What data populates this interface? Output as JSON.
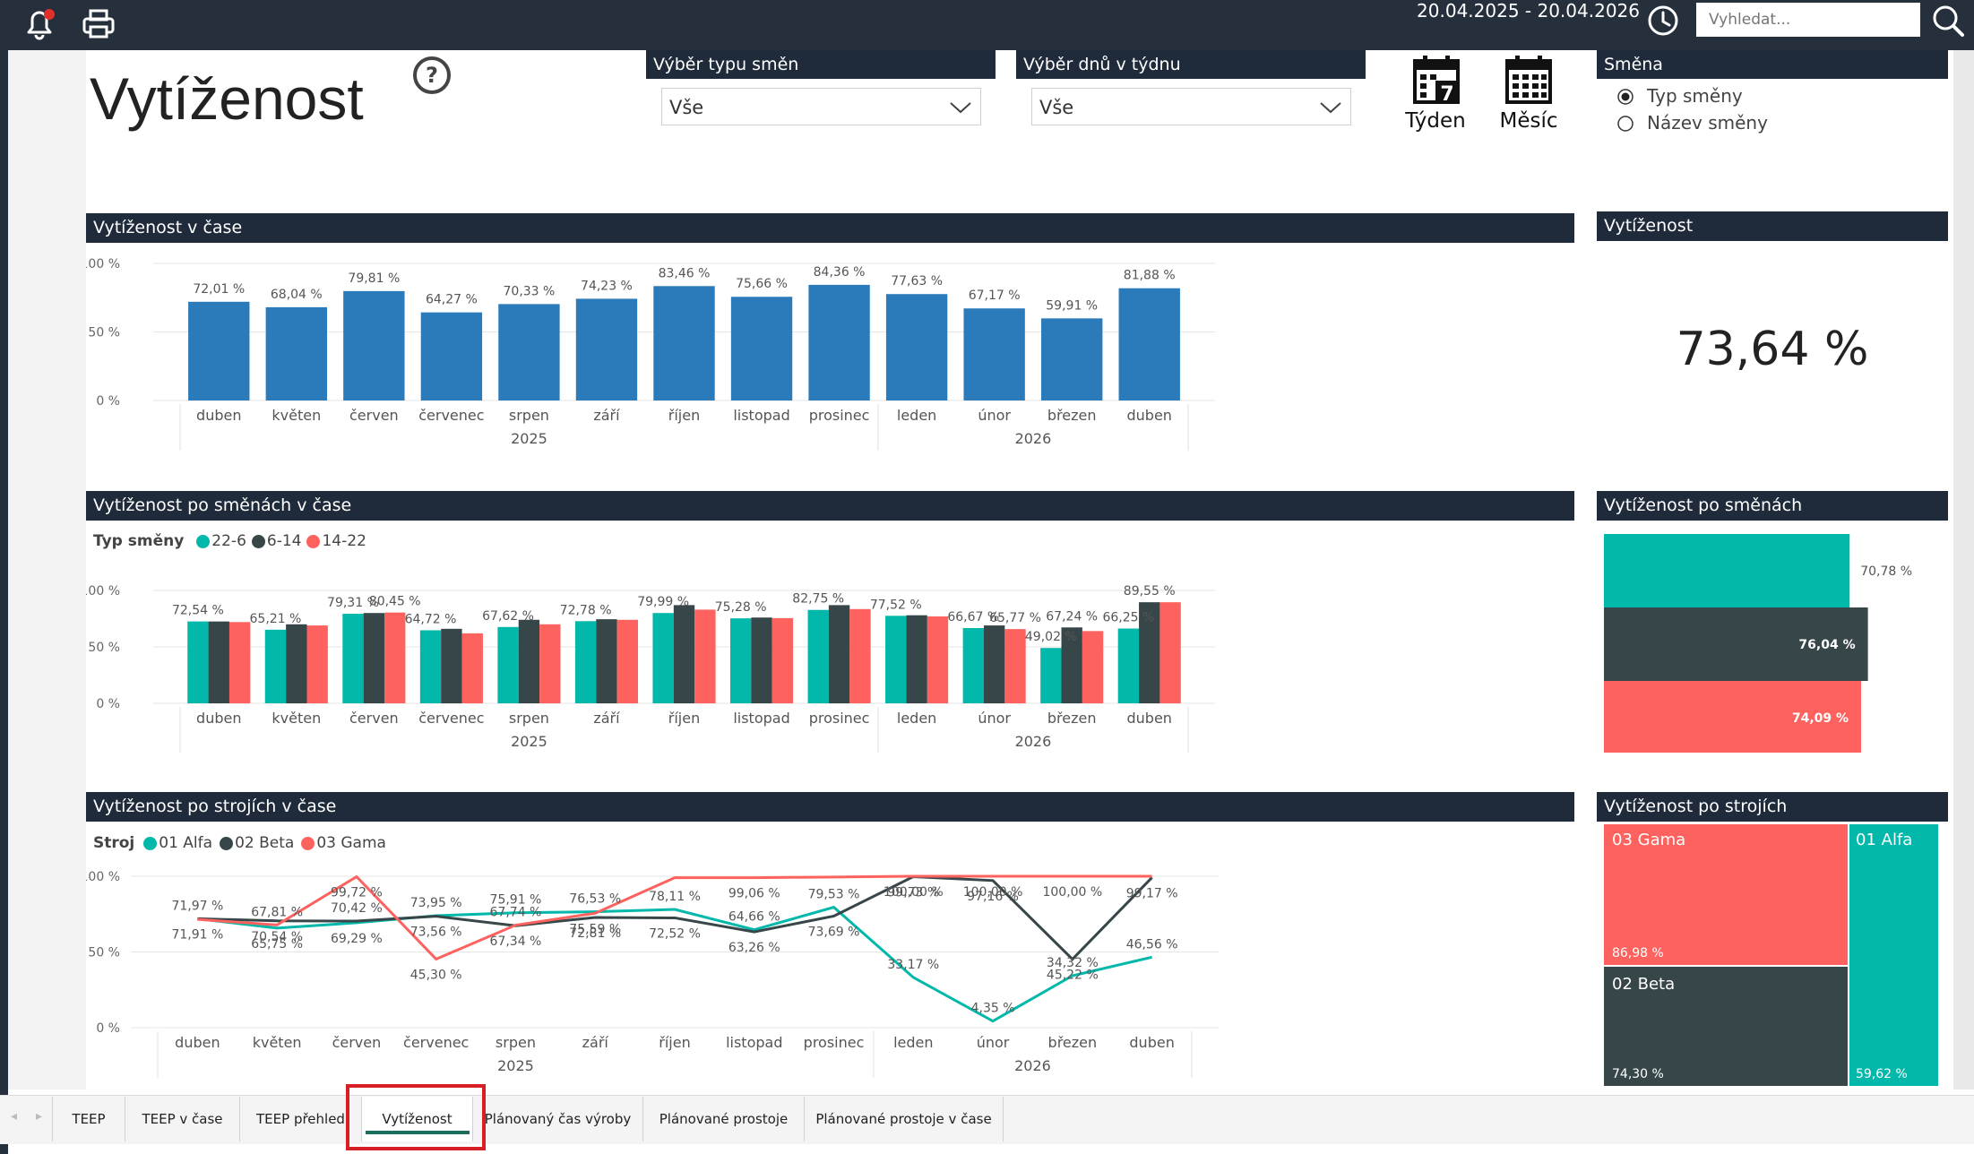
{
  "topbar": {
    "date_range": "20.04.2025 - 20.04.2026",
    "search_placeholder": "Vyhledat...",
    "icons": [
      "bell-icon",
      "print-icon",
      "clock-icon",
      "search-icon"
    ]
  },
  "page": {
    "title": "Vytíženost",
    "help_icon": "?"
  },
  "slicers": {
    "shift_type": {
      "label": "Výběr typu směn",
      "value": "Vše"
    },
    "weekday": {
      "label": "Výběr dnů v týdnu",
      "value": "Vše"
    }
  },
  "period_buttons": {
    "week": {
      "label": "Týden",
      "icon_digit": "7"
    },
    "month": {
      "label": "Měsíc"
    }
  },
  "shift_filter": {
    "title": "Směna",
    "options": [
      {
        "label": "Typ směny",
        "selected": true
      },
      {
        "label": "Název směny",
        "selected": false
      }
    ]
  },
  "colors": {
    "header": "#1f2b3a",
    "bar_blue": "#2b7bbb",
    "teal": "#01b8aa",
    "dark": "#374649",
    "red": "#fd625e",
    "tab_active_underline": "#1b6e5b",
    "highlight_red": "#d81f26"
  },
  "chart_time": {
    "title": "Vytíženost v čase",
    "chart_data": {
      "type": "bar",
      "categories": [
        "duben",
        "květen",
        "červen",
        "červenec",
        "srpen",
        "září",
        "říjen",
        "listopad",
        "prosinec",
        "leden",
        "únor",
        "březen",
        "duben"
      ],
      "year_groups": [
        {
          "label": "2025",
          "count": 9
        },
        {
          "label": "2026",
          "count": 4
        }
      ],
      "values": [
        72.01,
        68.04,
        79.81,
        64.27,
        70.33,
        74.23,
        83.46,
        75.66,
        84.36,
        77.63,
        67.17,
        59.91,
        81.88
      ],
      "labels": [
        "72,01 %",
        "68,04 %",
        "79,81 %",
        "64,27 %",
        "70,33 %",
        "74,23 %",
        "83,46 %",
        "75,66 %",
        "84,36 %",
        "77,63 %",
        "67,17 %",
        "59,91 %",
        "81,88 %"
      ],
      "ylim": [
        0,
        100
      ],
      "yticks": [
        "100 %",
        "50 %",
        "0 %"
      ],
      "grid": true
    }
  },
  "card_total": {
    "title": "Vytíženost",
    "value": "73,64 %"
  },
  "chart_shift_time": {
    "title": "Vytíženost po směnách v čase",
    "legend_title": "Typ směny",
    "chart_data": {
      "type": "bar",
      "categories": [
        "duben",
        "květen",
        "červen",
        "červenec",
        "srpen",
        "září",
        "říjen",
        "listopad",
        "prosinec",
        "leden",
        "únor",
        "březen",
        "duben"
      ],
      "year_groups": [
        {
          "label": "2025",
          "count": 9
        },
        {
          "label": "2026",
          "count": 4
        }
      ],
      "ylim": [
        0,
        100
      ],
      "yticks": [
        "100 %",
        "50 %",
        "0 %"
      ],
      "series": [
        {
          "name": "22-6",
          "color": "#01b8aa",
          "values": [
            72.54,
            65.21,
            79.31,
            64.72,
            67.62,
            72.78,
            79.99,
            75.28,
            82.75,
            77.52,
            66.67,
            49.02,
            66.25
          ]
        },
        {
          "name": "6-14",
          "color": "#374649",
          "values": [
            72.5,
            70.0,
            80.0,
            66.0,
            74.0,
            74.5,
            87.0,
            76.0,
            87.0,
            78.0,
            69.0,
            67.24,
            89.55
          ]
        },
        {
          "name": "14-22",
          "color": "#fd625e",
          "values": [
            72.0,
            69.0,
            80.45,
            62.0,
            70.0,
            74.0,
            83.0,
            75.5,
            83.5,
            77.0,
            65.77,
            64.0,
            89.55
          ]
        }
      ],
      "data_labels": [
        {
          "cat": 0,
          "series": 0,
          "text": "72,54 %"
        },
        {
          "cat": 1,
          "series": 0,
          "text": "65,21 %"
        },
        {
          "cat": 2,
          "series": 0,
          "text": "79,31 %"
        },
        {
          "cat": 2,
          "series": 2,
          "text": "80,45 %"
        },
        {
          "cat": 3,
          "series": 0,
          "text": "64,72 %"
        },
        {
          "cat": 4,
          "series": 0,
          "text": "67,62 %"
        },
        {
          "cat": 5,
          "series": 0,
          "text": "72,78 %"
        },
        {
          "cat": 6,
          "series": 0,
          "text": "79,99 %"
        },
        {
          "cat": 7,
          "series": 0,
          "text": "75,28 %"
        },
        {
          "cat": 8,
          "series": 0,
          "text": "82,75 %"
        },
        {
          "cat": 9,
          "series": 0,
          "text": "77,52 %"
        },
        {
          "cat": 10,
          "series": 0,
          "text": "66,67 %"
        },
        {
          "cat": 10,
          "series": 2,
          "text": "65,77 %"
        },
        {
          "cat": 11,
          "series": 0,
          "text": "49,02 %"
        },
        {
          "cat": 11,
          "series": 1,
          "text": "67,24 %"
        },
        {
          "cat": 12,
          "series": 0,
          "text": "66,25 %"
        },
        {
          "cat": 12,
          "series": 1,
          "text": "89,55 %"
        }
      ]
    }
  },
  "card_shift": {
    "title": "Vytíženost po směnách",
    "chart_data": {
      "type": "bar",
      "orientation": "horizontal",
      "categories": [
        "22-6",
        "6-14",
        "14-22"
      ],
      "values": [
        70.78,
        76.04,
        74.09
      ],
      "labels": [
        "70,78 %",
        "76,04 %",
        "74,09 %"
      ],
      "colors": [
        "#01b8aa",
        "#374649",
        "#fd625e"
      ]
    }
  },
  "chart_machine_time": {
    "title": "Vytíženost po strojích v čase",
    "legend_title": "Stroj",
    "chart_data": {
      "type": "line",
      "categories": [
        "duben",
        "květen",
        "červen",
        "červenec",
        "srpen",
        "září",
        "říjen",
        "listopad",
        "prosinec",
        "leden",
        "únor",
        "březen",
        "duben"
      ],
      "year_groups": [
        {
          "label": "2025",
          "count": 9
        },
        {
          "label": "2026",
          "count": 4
        }
      ],
      "ylim": [
        0,
        100
      ],
      "yticks": [
        "100 %",
        "50 %",
        "0 %"
      ],
      "series": [
        {
          "name": "01 Alfa",
          "color": "#01b8aa",
          "values": [
            71.91,
            65.75,
            69.29,
            73.95,
            75.91,
            76.53,
            78.11,
            64.66,
            79.53,
            33.17,
            4.35,
            34.32,
            46.56
          ]
        },
        {
          "name": "02 Beta",
          "color": "#374649",
          "values": [
            71.97,
            70.54,
            70.42,
            73.56,
            67.34,
            72.81,
            72.52,
            63.26,
            73.69,
            99.73,
            97.16,
            45.22,
            99.17
          ]
        },
        {
          "name": "03 Gama",
          "color": "#fd625e",
          "values": [
            71.5,
            67.81,
            99.72,
            45.3,
            67.74,
            75.59,
            99.06,
            99.06,
            99.5,
            100.0,
            100.0,
            100.0,
            100.0
          ]
        }
      ],
      "data_labels": [
        {
          "cat": 0,
          "y": 71.97,
          "above": true,
          "text": "71,97 %"
        },
        {
          "cat": 0,
          "y": 71.91,
          "above": false,
          "text": "71,91 %"
        },
        {
          "cat": 1,
          "y": 67.81,
          "above": true,
          "text": "67,81 %"
        },
        {
          "cat": 1,
          "y": 70.54,
          "above": false,
          "text": "70,54 %"
        },
        {
          "cat": 1,
          "y": 65.75,
          "above": false,
          "text": "65,75 %"
        },
        {
          "cat": 2,
          "y": 99.72,
          "above": false,
          "text": "99,72 %"
        },
        {
          "cat": 2,
          "y": 70.42,
          "above": true,
          "text": "70,42 %"
        },
        {
          "cat": 2,
          "y": 69.29,
          "above": false,
          "text": "69,29 %"
        },
        {
          "cat": 3,
          "y": 73.95,
          "above": true,
          "text": "73,95 %"
        },
        {
          "cat": 3,
          "y": 73.56,
          "above": false,
          "text": "73,56 %"
        },
        {
          "cat": 3,
          "y": 45.3,
          "above": false,
          "text": "45,30 %"
        },
        {
          "cat": 4,
          "y": 75.91,
          "above": true,
          "text": "75,91 %"
        },
        {
          "cat": 4,
          "y": 67.74,
          "above": true,
          "text": "67,74 %"
        },
        {
          "cat": 4,
          "y": 67.34,
          "above": false,
          "text": "67,34 %"
        },
        {
          "cat": 5,
          "y": 76.53,
          "above": true,
          "text": "76,53 %"
        },
        {
          "cat": 5,
          "y": 75.59,
          "above": false,
          "text": "75,59 %"
        },
        {
          "cat": 5,
          "y": 72.81,
          "above": false,
          "text": "72,81 %"
        },
        {
          "cat": 6,
          "y": 78.11,
          "above": true,
          "text": "78,11 %"
        },
        {
          "cat": 6,
          "y": 72.52,
          "above": false,
          "text": "72,52 %"
        },
        {
          "cat": 7,
          "y": 99.06,
          "above": false,
          "text": "99,06 %"
        },
        {
          "cat": 7,
          "y": 64.66,
          "above": true,
          "text": "64,66 %"
        },
        {
          "cat": 7,
          "y": 63.26,
          "above": false,
          "text": "63,26 %"
        },
        {
          "cat": 8,
          "y": 79.53,
          "above": true,
          "text": "79,53 %"
        },
        {
          "cat": 8,
          "y": 73.69,
          "above": false,
          "text": "73,69 %"
        },
        {
          "cat": 9,
          "y": 100.0,
          "above": false,
          "text": "100,00 %"
        },
        {
          "cat": 9,
          "y": 99.73,
          "above": false,
          "text": "99,73 %"
        },
        {
          "cat": 9,
          "y": 33.17,
          "above": true,
          "text": "33,17 %"
        },
        {
          "cat": 10,
          "y": 100.0,
          "above": false,
          "text": "100,00 %"
        },
        {
          "cat": 10,
          "y": 97.16,
          "above": false,
          "text": "97,16 %"
        },
        {
          "cat": 10,
          "y": 4.35,
          "above": true,
          "text": "4,35 %"
        },
        {
          "cat": 11,
          "y": 100.0,
          "above": false,
          "text": "100,00 %"
        },
        {
          "cat": 11,
          "y": 34.32,
          "above": true,
          "text": "34,32 %"
        },
        {
          "cat": 11,
          "y": 45.22,
          "above": false,
          "text": "45,22 %"
        },
        {
          "cat": 12,
          "y": 99.17,
          "above": false,
          "text": "99,17 %"
        },
        {
          "cat": 12,
          "y": 46.56,
          "above": true,
          "text": "46,56 %"
        }
      ]
    }
  },
  "card_machine": {
    "title": "Vytíženost po strojích",
    "chart_data": {
      "type": "treemap",
      "items": [
        {
          "name": "03 Gama",
          "value": 86.98,
          "label": "86,98 %",
          "color": "#fd625e"
        },
        {
          "name": "02 Beta",
          "value": 74.3,
          "label": "74,30 %",
          "color": "#374649"
        },
        {
          "name": "01 Alfa",
          "value": 59.62,
          "label": "59,62 %",
          "color": "#01b8aa"
        }
      ]
    }
  },
  "tabs": [
    {
      "label": "TEEP",
      "active": false
    },
    {
      "label": "TEEP v čase",
      "active": false
    },
    {
      "label": "TEEP přehled",
      "active": false
    },
    {
      "label": "Vytíženost",
      "active": true
    },
    {
      "label": "Plánovaný čas výroby",
      "active": false
    },
    {
      "label": "Plánované prostoje",
      "active": false
    },
    {
      "label": "Plánované prostoje v čase",
      "active": false
    }
  ]
}
